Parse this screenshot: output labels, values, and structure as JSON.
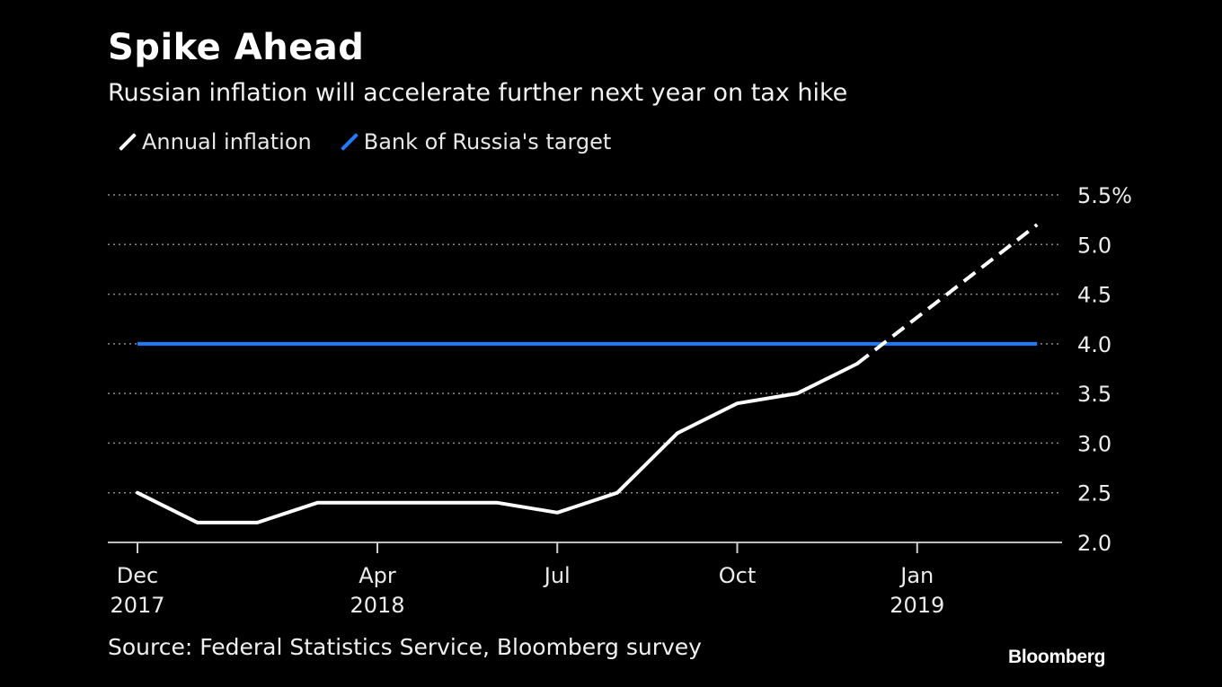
{
  "header": {
    "title": "Spike Ahead",
    "subtitle": "Russian inflation will accelerate further next year on tax hike"
  },
  "legend": [
    {
      "label": "Annual inflation",
      "color": "#ffffff"
    },
    {
      "label": "Bank of Russia's target",
      "color": "#1f7bff"
    }
  ],
  "footer": {
    "source": "Source: Federal Statistics Service, Bloomberg survey",
    "brand": "Bloomberg"
  },
  "chart_data": {
    "type": "line",
    "x": [
      "2017-12",
      "2018-01",
      "2018-02",
      "2018-03",
      "2018-04",
      "2018-05",
      "2018-06",
      "2018-07",
      "2018-08",
      "2018-09",
      "2018-10",
      "2018-11",
      "2018-12",
      "2019-01",
      "2019-02",
      "2019-03"
    ],
    "x_ticks": [
      {
        "x": "2017-12",
        "label": [
          "Dec",
          "2017"
        ]
      },
      {
        "x": "2018-04",
        "label": [
          "Apr",
          "2018"
        ]
      },
      {
        "x": "2018-07",
        "label": [
          "Jul",
          ""
        ]
      },
      {
        "x": "2018-10",
        "label": [
          "Oct",
          ""
        ]
      },
      {
        "x": "2019-01",
        "label": [
          "Jan",
          "2019"
        ]
      }
    ],
    "y_ticks": [
      "2.0",
      "2.5",
      "3.0",
      "3.5",
      "4.0",
      "4.5",
      "5.0",
      "5.5%"
    ],
    "ylim": [
      2.0,
      5.5
    ],
    "grid": true,
    "y_axis_side": "right",
    "legend_position": "top-left",
    "series": [
      {
        "name": "Annual inflation",
        "color": "#ffffff",
        "actual": [
          {
            "x": "2017-12",
            "y": 2.5
          },
          {
            "x": "2018-01",
            "y": 2.2
          },
          {
            "x": "2018-02",
            "y": 2.2
          },
          {
            "x": "2018-03",
            "y": 2.4
          },
          {
            "x": "2018-04",
            "y": 2.4
          },
          {
            "x": "2018-05",
            "y": 2.4
          },
          {
            "x": "2018-06",
            "y": 2.4
          },
          {
            "x": "2018-07",
            "y": 2.3
          },
          {
            "x": "2018-08",
            "y": 2.5
          },
          {
            "x": "2018-09",
            "y": 3.1
          },
          {
            "x": "2018-10",
            "y": 3.4
          },
          {
            "x": "2018-11",
            "y": 3.5
          },
          {
            "x": "2018-12",
            "y": 3.8
          }
        ],
        "forecast": [
          {
            "x": "2018-12",
            "y": 3.8
          },
          {
            "x": "2019-03",
            "y": 5.2
          }
        ]
      },
      {
        "name": "Bank of Russia's target",
        "color": "#1f7bff",
        "values": [
          {
            "x": "2017-12",
            "y": 4.0
          },
          {
            "x": "2019-03",
            "y": 4.0
          }
        ]
      }
    ]
  }
}
